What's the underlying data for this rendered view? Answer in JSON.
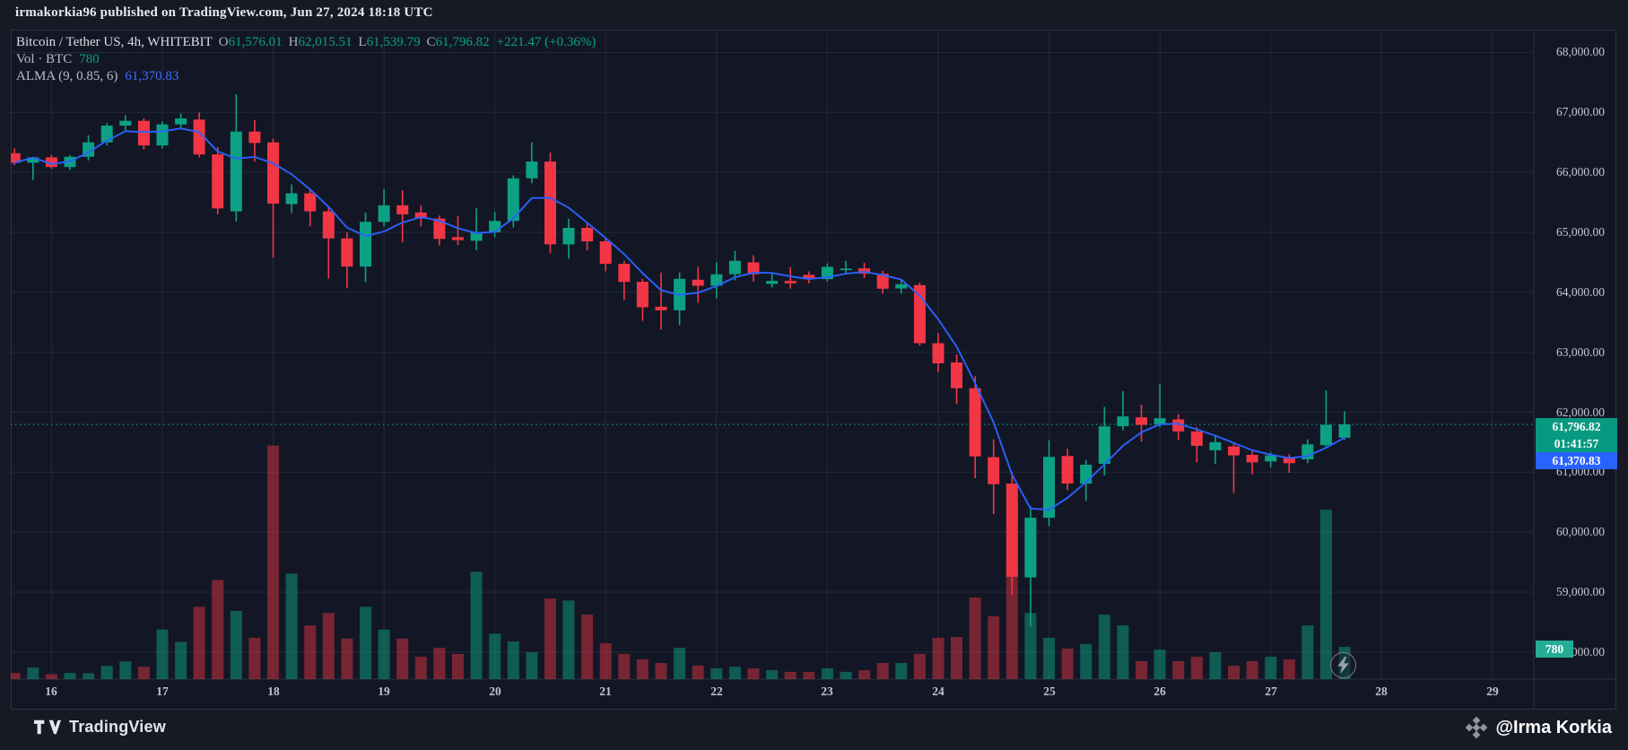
{
  "topbar": {
    "text": "irmakorkia96 published on TradingView.com, Jun 27, 2024 18:18 UTC"
  },
  "legend": {
    "title": "Bitcoin / Tether US, 4h, WHITEBIT",
    "ohlc": [
      {
        "k": "O",
        "v": "61,576.01"
      },
      {
        "k": "H",
        "v": "62,015.51"
      },
      {
        "k": "L",
        "v": "61,539.79"
      },
      {
        "k": "C",
        "v": "61,796.82"
      }
    ],
    "change": "+221.47 (+0.36%)",
    "vol_label": "Vol · BTC",
    "vol_value": "780",
    "alma_label": "ALMA (9, 0.85, 6)",
    "alma_value": "61,370.83"
  },
  "badges": {
    "last_price": "61,796.82",
    "countdown": "01:41:57",
    "alma": "61,370.83",
    "volume": "780"
  },
  "price_scale": {
    "labels": [
      "68,000.00",
      "67,000.00",
      "66,000.00",
      "65,000.00",
      "64,000.00",
      "63,000.00",
      "62,000.00",
      "61,000.00",
      "60,000.00",
      "59,000.00",
      "58,000.00"
    ],
    "values": [
      68000,
      67000,
      66000,
      65000,
      64000,
      63000,
      62000,
      61000,
      60000,
      59000,
      58000
    ]
  },
  "time_scale": {
    "labels": [
      "16",
      "17",
      "18",
      "19",
      "20",
      "21",
      "22",
      "23",
      "24",
      "25",
      "26",
      "27",
      "28",
      "29"
    ]
  },
  "footer": {
    "brand": "TradingView",
    "watermark": "@Irma Korkia"
  },
  "colors": {
    "up": "#0ca184",
    "down": "#f23645",
    "alma_line": "#2962ff",
    "price_line": "#089981",
    "badge_price": "#089981",
    "badge_alma": "#2962ff",
    "badge_volume": "#25ac97",
    "background": "#131725",
    "grid": "rgba(151,164,200,0.12)",
    "axis_text": "#c6c9d0"
  },
  "chart_data": {
    "type": "candlestick",
    "title": "Bitcoin / Tether US, 4h, WHITEBIT",
    "legend_last": {
      "open": 61576.01,
      "high": 62015.51,
      "low": 61539.79,
      "close": 61796.82,
      "change": 221.47,
      "change_pct": 0.36
    },
    "last_price": 61796.82,
    "alma_value": 61370.83,
    "last_volume_btc": 780,
    "ylim": [
      57800,
      68200
    ],
    "grid": true,
    "overlays": {
      "alma": {
        "window": 9,
        "offset": 0.85,
        "sigma": 6
      }
    },
    "day_labels": [
      "16",
      "17",
      "18",
      "19",
      "20",
      "21",
      "22",
      "23",
      "24",
      "25",
      "26",
      "27",
      "28",
      "29"
    ],
    "first_day_label_candle_index": 2,
    "candles_per_day": 6,
    "candles_ohlcv": [
      [
        66320,
        66400,
        66120,
        66160,
        150
      ],
      [
        66160,
        66260,
        65870,
        66250,
        280
      ],
      [
        66250,
        66290,
        66060,
        66090,
        120
      ],
      [
        66090,
        66290,
        66040,
        66260,
        150
      ],
      [
        66260,
        66620,
        66200,
        66500,
        140
      ],
      [
        66500,
        66820,
        66450,
        66780,
        320
      ],
      [
        66780,
        66950,
        66680,
        66860,
        430
      ],
      [
        66860,
        66900,
        66380,
        66450,
        300
      ],
      [
        66450,
        66850,
        66400,
        66800,
        1200
      ],
      [
        66800,
        66980,
        66740,
        66900,
        900
      ],
      [
        66880,
        67000,
        66250,
        66300,
        1750
      ],
      [
        66300,
        66420,
        65300,
        65400,
        2400
      ],
      [
        65350,
        67300,
        65180,
        66680,
        1650
      ],
      [
        66680,
        66870,
        66180,
        66490,
        1000
      ],
      [
        66500,
        66560,
        64580,
        65480,
        5650
      ],
      [
        65470,
        65800,
        65320,
        65650,
        2550
      ],
      [
        65650,
        65700,
        65100,
        65350,
        1300
      ],
      [
        65350,
        65430,
        64230,
        64900,
        1600
      ],
      [
        64900,
        65000,
        64070,
        64430,
        980
      ],
      [
        64430,
        65330,
        64170,
        65175,
        1750
      ],
      [
        65175,
        65725,
        65100,
        65450,
        1200
      ],
      [
        65450,
        65700,
        64830,
        65300,
        980
      ],
      [
        65330,
        65450,
        65100,
        65230,
        540
      ],
      [
        65230,
        65280,
        64780,
        64890,
        760
      ],
      [
        64920,
        65270,
        64790,
        64870,
        610
      ],
      [
        64860,
        65400,
        64700,
        65000,
        2600
      ],
      [
        65000,
        65340,
        64920,
        65190,
        1100
      ],
      [
        65190,
        65950,
        65080,
        65900,
        910
      ],
      [
        65900,
        66500,
        65820,
        66180,
        650
      ],
      [
        66180,
        66330,
        64650,
        64800,
        1950
      ],
      [
        64800,
        65225,
        64560,
        65075,
        1900
      ],
      [
        65075,
        65150,
        64700,
        64850,
        1560
      ],
      [
        64850,
        64900,
        64350,
        64475,
        870
      ],
      [
        64475,
        64525,
        63870,
        64175,
        610
      ],
      [
        64175,
        64225,
        63525,
        63750,
        480
      ],
      [
        63760,
        64330,
        63380,
        63700,
        390
      ],
      [
        63700,
        64330,
        63450,
        64225,
        760
      ],
      [
        64210,
        64425,
        63825,
        64110,
        330
      ],
      [
        64110,
        64500,
        63900,
        64300,
        260
      ],
      [
        64300,
        64690,
        64200,
        64525,
        300
      ],
      [
        64500,
        64620,
        64180,
        64300,
        260
      ],
      [
        64140,
        64310,
        64080,
        64190,
        220
      ],
      [
        64190,
        64420,
        64060,
        64150,
        175
      ],
      [
        64290,
        64350,
        64150,
        64220,
        175
      ],
      [
        64220,
        64480,
        64180,
        64425,
        260
      ],
      [
        64370,
        64525,
        64300,
        64395,
        175
      ],
      [
        64400,
        64490,
        64240,
        64310,
        215
      ],
      [
        64310,
        64360,
        63980,
        64060,
        390
      ],
      [
        64065,
        64215,
        63980,
        64135,
        390
      ],
      [
        64120,
        64160,
        63110,
        63150,
        610
      ],
      [
        63150,
        63320,
        62665,
        62815,
        1000
      ],
      [
        62830,
        62965,
        62140,
        62400,
        1020
      ],
      [
        62400,
        62600,
        60900,
        61265,
        1975
      ],
      [
        61250,
        61550,
        60300,
        60800,
        1520
      ],
      [
        60810,
        61000,
        58950,
        59255,
        2800
      ],
      [
        59245,
        60430,
        58430,
        60240,
        1600
      ],
      [
        60240,
        61530,
        60100,
        61255,
        1000
      ],
      [
        61270,
        61390,
        60700,
        60810,
        740
      ],
      [
        60810,
        61200,
        60520,
        61125,
        850
      ],
      [
        61140,
        62090,
        60945,
        61765,
        1560
      ],
      [
        61765,
        62350,
        61700,
        61930,
        1300
      ],
      [
        61915,
        62125,
        61510,
        61790,
        435
      ],
      [
        61800,
        62465,
        61750,
        61900,
        715
      ],
      [
        61880,
        61965,
        61535,
        61680,
        435
      ],
      [
        61680,
        61750,
        61165,
        61440,
        540
      ],
      [
        61365,
        61615,
        61140,
        61500,
        650
      ],
      [
        61430,
        61500,
        60650,
        61280,
        325
      ],
      [
        61290,
        61350,
        60965,
        61165,
        435
      ],
      [
        61180,
        61330,
        61080,
        61280,
        540
      ],
      [
        61250,
        61300,
        60990,
        61150,
        480
      ],
      [
        61215,
        61550,
        61150,
        61465,
        1300
      ],
      [
        61450,
        62365,
        61400,
        61790,
        4100
      ],
      [
        61576.01,
        62015.51,
        61539.79,
        61796.82,
        780
      ]
    ]
  }
}
